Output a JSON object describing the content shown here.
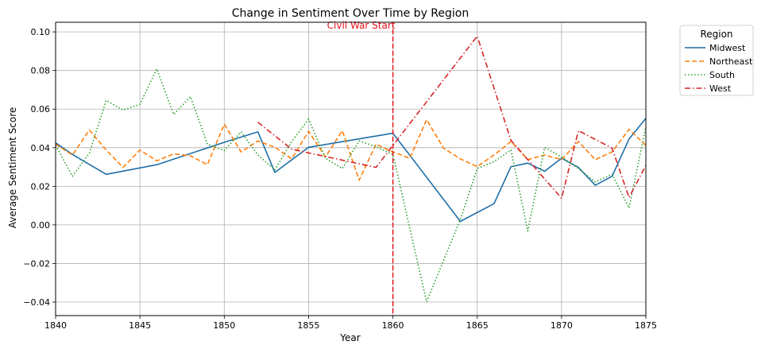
{
  "chart_data": {
    "type": "line",
    "title": "Change in Sentiment Over Time by Region",
    "xlabel": "Year",
    "ylabel": "Average Sentiment Score",
    "xlim": [
      1840,
      1875
    ],
    "ylim": [
      -0.047,
      0.105
    ],
    "xticks": [
      1840,
      1845,
      1850,
      1855,
      1860,
      1865,
      1870,
      1875
    ],
    "xtick_labels": [
      "1840",
      "1845",
      "1850",
      "1855",
      "1860",
      "1865",
      "1870",
      "1875"
    ],
    "yticks": [
      -0.04,
      -0.02,
      0.0,
      0.02,
      0.04,
      0.06,
      0.08,
      0.1
    ],
    "ytick_labels": [
      "−0.04",
      "−0.02",
      "0.00",
      "0.02",
      "0.04",
      "0.06",
      "0.08",
      "0.10"
    ],
    "grid": true,
    "legend": {
      "title": "Region",
      "position": "upper-right-outside"
    },
    "annotation": {
      "x": 1860,
      "text": "Civil War Start",
      "color": "#e6141a"
    },
    "series": [
      {
        "name": "Midwest",
        "color": "#1f6fa8",
        "dash": "solid",
        "points": [
          [
            1840,
            0.0425
          ],
          [
            1841,
            0.0365
          ],
          [
            1843,
            0.0262
          ],
          [
            1846,
            0.0312
          ],
          [
            1850,
            0.0428
          ],
          [
            1852,
            0.0482
          ],
          [
            1853,
            0.0272
          ],
          [
            1855,
            0.0402
          ],
          [
            1860,
            0.0475
          ],
          [
            1864,
            0.0018
          ],
          [
            1866,
            0.011
          ],
          [
            1867,
            0.0302
          ],
          [
            1868,
            0.032
          ],
          [
            1869,
            0.0278
          ],
          [
            1870,
            0.0345
          ],
          [
            1871,
            0.0298
          ],
          [
            1872,
            0.0205
          ],
          [
            1873,
            0.0252
          ],
          [
            1874,
            0.0445
          ],
          [
            1875,
            0.0552
          ]
        ]
      },
      {
        "name": "Northeast",
        "color": "#ff7f0e",
        "dash": "dashed",
        "points": [
          [
            1840,
            0.0418
          ],
          [
            1841,
            0.0362
          ],
          [
            1842,
            0.0492
          ],
          [
            1843,
            0.0388
          ],
          [
            1844,
            0.0298
          ],
          [
            1845,
            0.0388
          ],
          [
            1846,
            0.0332
          ],
          [
            1847,
            0.0368
          ],
          [
            1848,
            0.0358
          ],
          [
            1849,
            0.0312
          ],
          [
            1850,
            0.0522
          ],
          [
            1851,
            0.0378
          ],
          [
            1852,
            0.0435
          ],
          [
            1853,
            0.0402
          ],
          [
            1854,
            0.0342
          ],
          [
            1855,
            0.0485
          ],
          [
            1856,
            0.0352
          ],
          [
            1857,
            0.0488
          ],
          [
            1858,
            0.0232
          ],
          [
            1859,
            0.0418
          ],
          [
            1860,
            0.0378
          ],
          [
            1861,
            0.0345
          ],
          [
            1862,
            0.0545
          ],
          [
            1863,
            0.0398
          ],
          [
            1864,
            0.0342
          ],
          [
            1865,
            0.0302
          ],
          [
            1866,
            0.0362
          ],
          [
            1867,
            0.0432
          ],
          [
            1868,
            0.0338
          ],
          [
            1869,
            0.0362
          ],
          [
            1870,
            0.0338
          ],
          [
            1871,
            0.0432
          ],
          [
            1872,
            0.0338
          ],
          [
            1873,
            0.0378
          ],
          [
            1874,
            0.0495
          ],
          [
            1875,
            0.0412
          ]
        ]
      },
      {
        "name": "South",
        "color": "#2ca02c",
        "dash": "dotted",
        "points": [
          [
            1840,
            0.0412
          ],
          [
            1841,
            0.0252
          ],
          [
            1842,
            0.0372
          ],
          [
            1843,
            0.0645
          ],
          [
            1844,
            0.0595
          ],
          [
            1845,
            0.0625
          ],
          [
            1846,
            0.0808
          ],
          [
            1847,
            0.0572
          ],
          [
            1848,
            0.0665
          ],
          [
            1849,
            0.0418
          ],
          [
            1850,
            0.0385
          ],
          [
            1851,
            0.0482
          ],
          [
            1852,
            0.0362
          ],
          [
            1853,
            0.0285
          ],
          [
            1854,
            0.0432
          ],
          [
            1855,
            0.0548
          ],
          [
            1856,
            0.0345
          ],
          [
            1857,
            0.0292
          ],
          [
            1858,
            0.0435
          ],
          [
            1859,
            0.0405
          ],
          [
            1860,
            0.0365
          ],
          [
            1862,
            -0.0398
          ],
          [
            1864,
            0.0028
          ],
          [
            1865,
            0.0292
          ],
          [
            1866,
            0.0328
          ],
          [
            1867,
            0.0388
          ],
          [
            1868,
            -0.0032
          ],
          [
            1869,
            0.0402
          ],
          [
            1870,
            0.0352
          ],
          [
            1871,
            0.0292
          ],
          [
            1872,
            0.0222
          ],
          [
            1873,
            0.0262
          ],
          [
            1874,
            0.0088
          ],
          [
            1875,
            0.0508
          ]
        ]
      },
      {
        "name": "West",
        "color": "#d62728",
        "dash": "dashdot",
        "points": [
          [
            1852,
            0.0532
          ],
          [
            1854,
            0.0392
          ],
          [
            1859,
            0.0298
          ],
          [
            1865,
            0.0978
          ],
          [
            1867,
            0.0438
          ],
          [
            1870,
            0.0138
          ],
          [
            1871,
            0.0488
          ],
          [
            1873,
            0.0398
          ],
          [
            1874,
            0.0142
          ],
          [
            1875,
            0.0308
          ]
        ]
      }
    ]
  }
}
